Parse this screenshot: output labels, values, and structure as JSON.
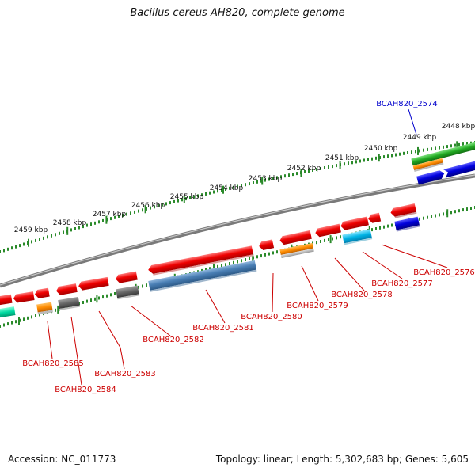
{
  "title": "Bacillus cereus AH820, complete genome",
  "footer": {
    "accession": "Accession: NC_011773",
    "topology": "Topology: linear;",
    "length": "Length: 5,302,683 bp;",
    "genes": "Genes: 5,605"
  },
  "scale_labels": [
    "2448 kbp",
    "2449 kbp",
    "2450 kbp",
    "2451 kbp",
    "2452 kbp",
    "2453 kbp",
    "2454 kbp",
    "2455 kbp",
    "2456 kbp",
    "2457 kbp",
    "2458 kbp",
    "2459 kbp"
  ],
  "gene_labels": [
    "BCAH820_2574",
    "BCAH820_2576",
    "BCAH820_2577",
    "BCAH820_2578",
    "BCAH820_2579",
    "BCAH820_2580",
    "BCAH820_2581",
    "BCAH820_2582",
    "BCAH820_2583",
    "BCAH820_2584",
    "BCAH820_2585"
  ],
  "colors": {
    "backbone": "#8a8a8a",
    "scale": "#2a8a2a",
    "label_red": "#cc0000",
    "label_blue": "#0000cc",
    "gene_red": "#ee0000",
    "gene_blue": "#0000dd",
    "gene_steel": "#4a7fb5",
    "gene_orange": "#ff8c00",
    "gene_gray": "#666666",
    "gene_cyan": "#00b4e6",
    "gene_green": "#22aa22",
    "gene_teal": "#00d8a0"
  }
}
